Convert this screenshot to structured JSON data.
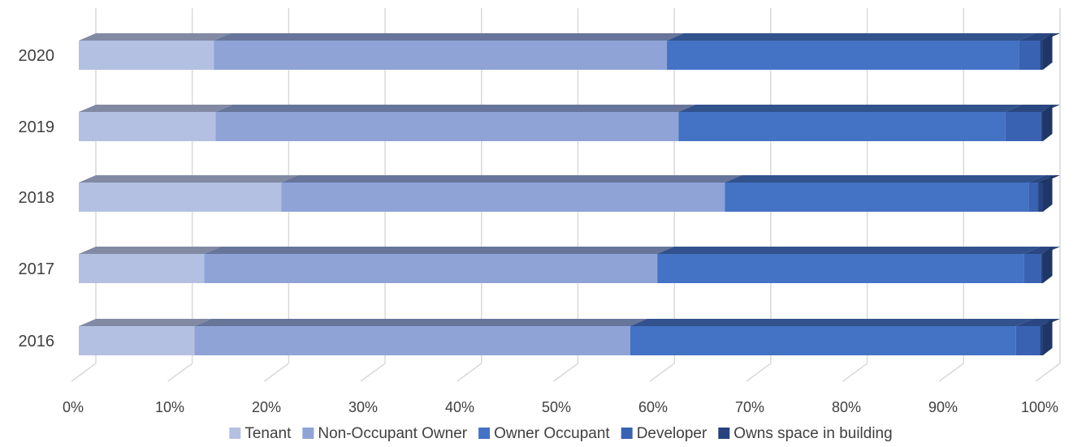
{
  "chart_data": {
    "type": "bar",
    "orientation": "horizontal",
    "stacked": "percent",
    "style": "3d",
    "categories": [
      "2016",
      "2017",
      "2018",
      "2019",
      "2020"
    ],
    "series": [
      {
        "name": "Tenant",
        "color": "#b4c0e2",
        "values": [
          12.0,
          13.0,
          21.0,
          14.2,
          14.0
        ]
      },
      {
        "name": "Non-Occupant Owner",
        "color": "#8fa3d6",
        "values": [
          45.2,
          47.0,
          46.0,
          48.0,
          47.0
        ]
      },
      {
        "name": "Owner Occupant",
        "color": "#4472c4",
        "values": [
          40.0,
          38.0,
          31.5,
          33.9,
          36.5
        ]
      },
      {
        "name": "Developer",
        "color": "#3a62b3",
        "values": [
          2.5,
          1.8,
          1.0,
          3.7,
          2.2
        ]
      },
      {
        "name": "Owns space in building",
        "color": "#27437f",
        "values": [
          0.3,
          0.2,
          0.5,
          0.2,
          0.3
        ]
      }
    ],
    "x_ticks": [
      "0%",
      "10%",
      "20%",
      "30%",
      "40%",
      "50%",
      "60%",
      "70%",
      "80%",
      "90%",
      "100%"
    ],
    "xlim": [
      0,
      100
    ],
    "grid": true,
    "legend": "bottom",
    "title": "",
    "xlabel": "",
    "ylabel": ""
  }
}
